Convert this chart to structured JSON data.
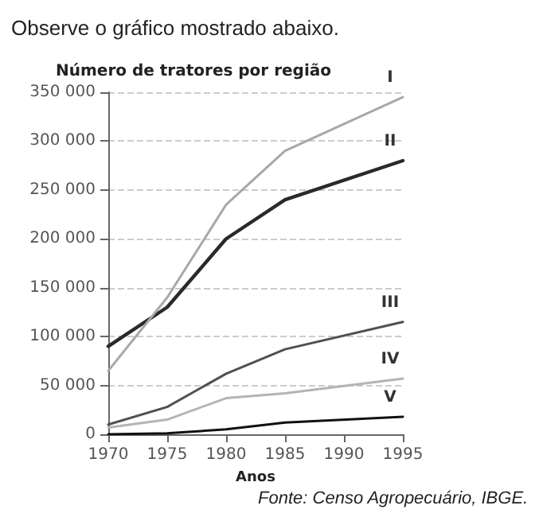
{
  "chart_data": {
    "type": "line",
    "title": "Observe o gráfico mostrado abaixo.",
    "ylabel": "Número de tratores por região",
    "xlabel": "Anos",
    "annotations": [
      "Fonte: Censo Agropecuário, IBGE."
    ],
    "x": [
      1970,
      1975,
      1980,
      1985,
      1995
    ],
    "series": [
      {
        "name": "I",
        "color": "#a8a8a8",
        "values": [
          65000,
          140000,
          235000,
          290000,
          345000
        ]
      },
      {
        "name": "II",
        "color": "#2a2a2a",
        "values": [
          90000,
          130000,
          200000,
          240000,
          280000
        ]
      },
      {
        "name": "III",
        "color": "#505050",
        "values": [
          10000,
          28000,
          62000,
          87000,
          115000
        ]
      },
      {
        "name": "IV",
        "color": "#b4b4b4",
        "values": [
          7000,
          15000,
          37000,
          42000,
          57000
        ]
      },
      {
        "name": "V",
        "color": "#111111",
        "values": [
          0,
          1000,
          5000,
          12000,
          18000
        ]
      }
    ],
    "xlim": [
      1970,
      1995
    ],
    "xticks": [
      1970,
      1975,
      1980,
      1985,
      1990,
      1995
    ],
    "ylim": [
      0,
      350000
    ],
    "yticks": [
      {
        "value": 0,
        "label": "0"
      },
      {
        "value": 50000,
        "label": "50 000"
      },
      {
        "value": 100000,
        "label": "100 000"
      },
      {
        "value": 150000,
        "label": "150 000"
      },
      {
        "value": 200000,
        "label": "200 000"
      },
      {
        "value": 250000,
        "label": "250 000"
      },
      {
        "value": 300000,
        "label": "300 000"
      },
      {
        "value": 350000,
        "label": "350 000"
      }
    ],
    "grid": "y",
    "legend": false,
    "marker": "none",
    "line_style": "solid"
  }
}
